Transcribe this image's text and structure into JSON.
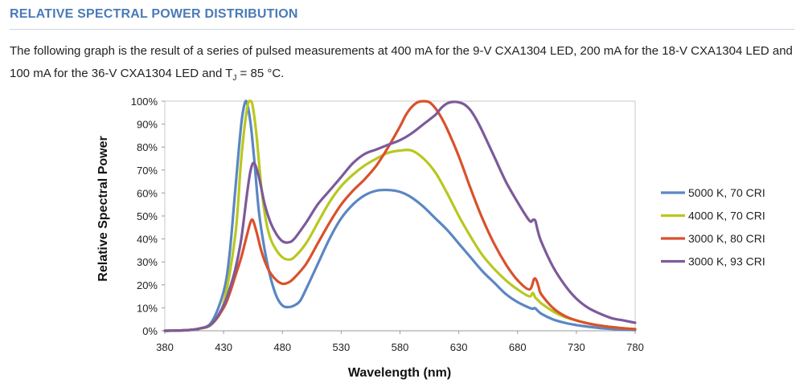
{
  "section": {
    "title": "RELATIVE SPECTRAL POWER DISTRIBUTION"
  },
  "intro": {
    "text_before_sub": "The following graph is the result of a series of pulsed measurements at 400 mA for the 9-V CXA1304 LED, 200 mA for the 18-V CXA1304 LED and 100 mA for the 36-V CXA1304 LED and T",
    "subscript": "J",
    "text_after_sub": " = 85 °C."
  },
  "colors": {
    "title": "#4a7ab8",
    "s5000": "#5b86c3",
    "s4000": "#b8c820",
    "s3000_80": "#d9512c",
    "s3000_93": "#7d5a9a"
  },
  "chart_data": {
    "type": "line",
    "xlabel": "Wavelength (nm)",
    "ylabel": "Relative Spectral Power",
    "xlim": [
      380,
      780
    ],
    "ylim": [
      0,
      100
    ],
    "x_ticks": [
      "380",
      "430",
      "480",
      "530",
      "580",
      "630",
      "680",
      "730",
      "780"
    ],
    "y_ticks": [
      "0%",
      "10%",
      "20%",
      "30%",
      "40%",
      "50%",
      "60%",
      "70%",
      "80%",
      "90%",
      "100%"
    ],
    "legend_position": "right",
    "grid": false,
    "series": [
      {
        "name": "5000 K, 70 CRI",
        "color": "#5b86c3",
        "x": [
          380,
          400,
          410,
          420,
          430,
          435,
          440,
          445,
          448,
          450,
          453,
          456,
          460,
          465,
          470,
          475,
          480,
          485,
          490,
          495,
          500,
          510,
          520,
          530,
          540,
          550,
          560,
          570,
          580,
          590,
          600,
          610,
          620,
          630,
          640,
          650,
          660,
          670,
          680,
          690,
          693,
          695,
          700,
          710,
          720,
          730,
          740,
          750,
          760,
          770,
          780
        ],
        "y": [
          0,
          0.3,
          1,
          4,
          17,
          33,
          62,
          90,
          99,
          99,
          90,
          75,
          52,
          35,
          23,
          15,
          11,
          10.3,
          11,
          13,
          18,
          29,
          40,
          49,
          55,
          59,
          61,
          61.3,
          60.5,
          58,
          54,
          49,
          44,
          38,
          32,
          26,
          21,
          16,
          12.5,
          10,
          9.6,
          9.8,
          7.5,
          5,
          3.5,
          2.5,
          1.8,
          1.2,
          0.8,
          0.5,
          0.3
        ]
      },
      {
        "name": "4000 K, 70 CRI",
        "color": "#b8c820",
        "x": [
          380,
          400,
          410,
          420,
          430,
          440,
          445,
          450,
          453,
          455,
          458,
          462,
          466,
          470,
          475,
          480,
          485,
          490,
          500,
          510,
          520,
          530,
          540,
          550,
          560,
          570,
          580,
          590,
          600,
          610,
          620,
          630,
          640,
          650,
          660,
          670,
          680,
          690,
          693,
          695,
          698,
          700,
          710,
          720,
          730,
          740,
          750,
          760,
          770,
          780
        ],
        "y": [
          0,
          0.3,
          1,
          3,
          12,
          42,
          75,
          97,
          100,
          97,
          85,
          63,
          48,
          40,
          35,
          32,
          31,
          32,
          38,
          47,
          56,
          63,
          68,
          72,
          75,
          77.5,
          78.5,
          78.5,
          75,
          69,
          60,
          50,
          41,
          33,
          27,
          22,
          18,
          15,
          16.5,
          14.5,
          13,
          12,
          8.5,
          6,
          4.5,
          3.2,
          2.3,
          1.6,
          1.1,
          0.7
        ]
      },
      {
        "name": "3000 K, 80 CRI",
        "color": "#d9512c",
        "x": [
          380,
          400,
          410,
          420,
          430,
          435,
          440,
          445,
          450,
          453,
          455,
          458,
          462,
          466,
          470,
          475,
          480,
          485,
          490,
          500,
          510,
          520,
          530,
          540,
          550,
          560,
          570,
          580,
          585,
          590,
          595,
          600,
          605,
          610,
          615,
          620,
          630,
          640,
          650,
          660,
          670,
          680,
          690,
          694,
          696,
          698,
          700,
          710,
          720,
          730,
          740,
          750,
          760,
          770,
          780
        ],
        "y": [
          0,
          0.3,
          1,
          3,
          10,
          16,
          24,
          32,
          42,
          47.5,
          48,
          43,
          35,
          29,
          25,
          22,
          20.5,
          21,
          23,
          29,
          38,
          47,
          55,
          61,
          66,
          72,
          80,
          89,
          94,
          97.5,
          99.5,
          100,
          99.5,
          97,
          93,
          88,
          76,
          62,
          49,
          38,
          29,
          22,
          18,
          22.5,
          22,
          19,
          16,
          10,
          6.5,
          4.5,
          3.2,
          2.3,
          1.6,
          1.1,
          0.7
        ]
      },
      {
        "name": "3000 K, 93 CRI",
        "color": "#7d5a9a",
        "x": [
          380,
          400,
          410,
          420,
          430,
          435,
          440,
          445,
          450,
          453,
          456,
          460,
          465,
          470,
          475,
          480,
          485,
          490,
          500,
          510,
          520,
          530,
          540,
          550,
          560,
          570,
          580,
          590,
          600,
          610,
          615,
          620,
          625,
          630,
          635,
          640,
          645,
          650,
          660,
          670,
          680,
          690,
          693,
          695,
          697,
          700,
          710,
          720,
          730,
          740,
          750,
          760,
          770,
          780
        ],
        "y": [
          0,
          0.3,
          1,
          3,
          11,
          18,
          27,
          40,
          60,
          70,
          73,
          67,
          55,
          47,
          42,
          39,
          38.5,
          40,
          47,
          55,
          61,
          67,
          73,
          77,
          79,
          81,
          83,
          86,
          90,
          94,
          97,
          99,
          99.7,
          99.5,
          98.5,
          96,
          92,
          87,
          76,
          65,
          56,
          48,
          48.3,
          48,
          44,
          39,
          28,
          20,
          14,
          10,
          7.5,
          5.5,
          4.5,
          3.5
        ]
      }
    ]
  }
}
